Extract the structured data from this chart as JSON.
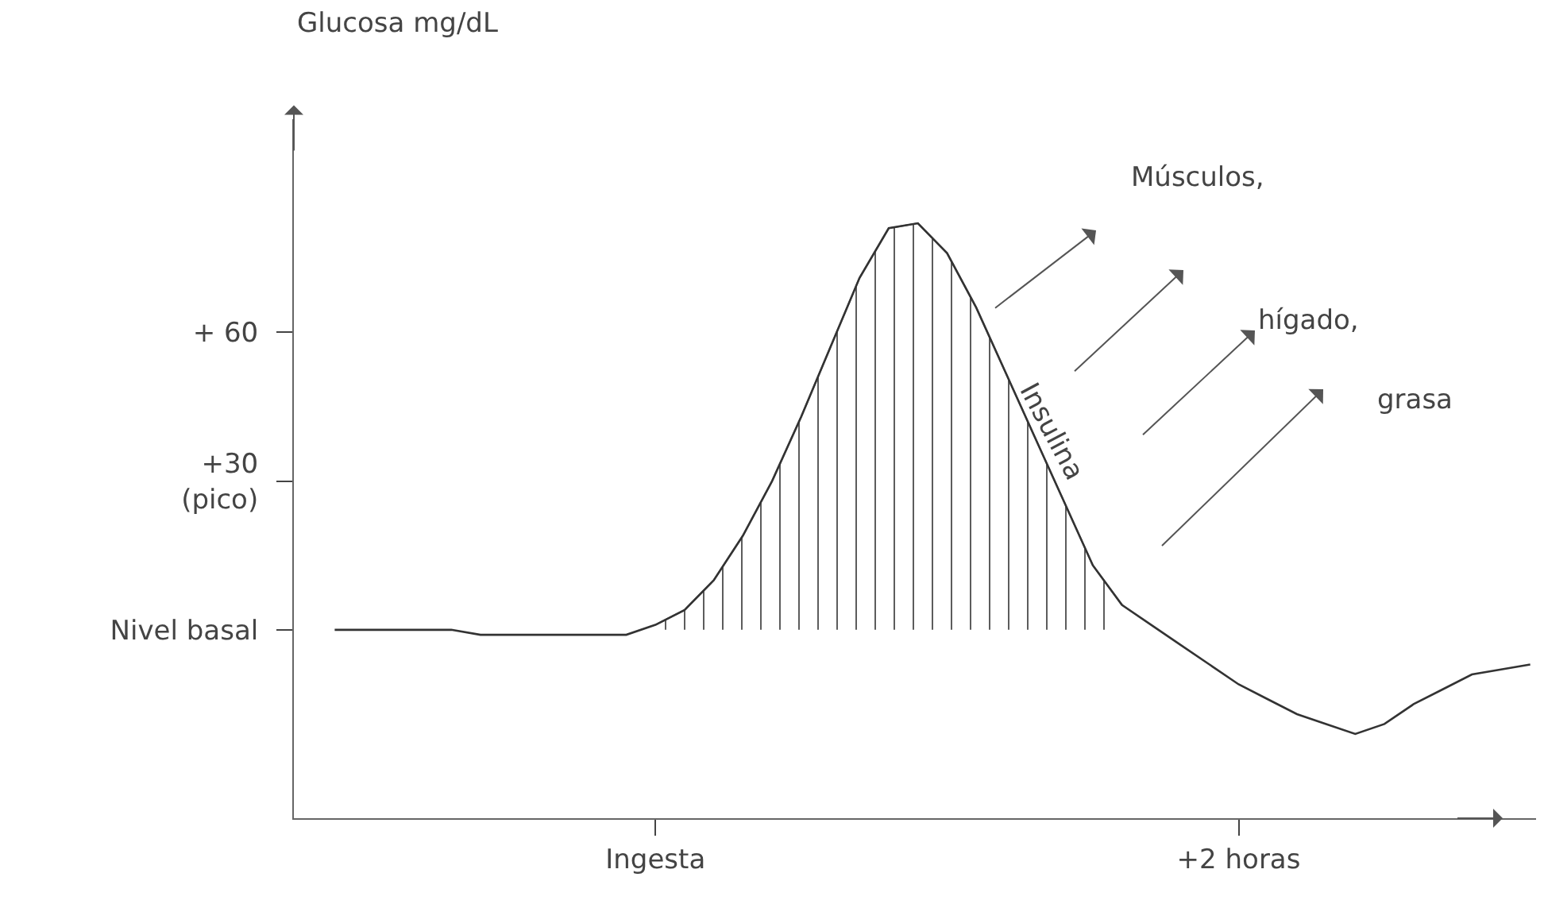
{
  "chart_data": {
    "type": "line",
    "ylabel": "Glucosa mg/dL",
    "categories": [
      null,
      null,
      null,
      null,
      null,
      null,
      null,
      null,
      null,
      null,
      null,
      "Ingesta",
      null,
      null,
      null,
      null,
      null,
      null,
      null,
      null,
      null,
      null,
      null,
      null,
      null,
      null,
      null,
      null,
      null,
      null,
      null,
      "+2 horas",
      null,
      null,
      null,
      null,
      null,
      null,
      null,
      null,
      null,
      null
    ],
    "ylim": [
      -38,
      103
    ],
    "yticks": [
      {
        "value": 0,
        "label": "Nivel basal"
      },
      {
        "value": 30,
        "label": "+30\n(pico)"
      },
      {
        "value": 60,
        "label": "+ 60"
      }
    ],
    "series": [
      {
        "color": "#333333",
        "values": [
          0,
          0,
          0,
          0,
          0,
          -1,
          -1,
          -1,
          -1,
          -1,
          -1,
          1,
          4,
          10,
          19,
          30,
          43,
          57,
          71,
          81,
          82,
          76,
          65,
          52,
          39,
          26,
          13,
          5,
          1,
          -3,
          -7,
          -11,
          -14,
          -17,
          -19,
          -21,
          -19,
          -15,
          -12,
          -9,
          -8,
          -7
        ]
      },
      {
        "type": "area",
        "color": "#555555",
        "values": [
          null,
          null,
          null,
          null,
          null,
          null,
          null,
          null,
          null,
          null,
          null,
          1,
          4,
          10,
          19,
          30,
          43,
          57,
          71,
          81,
          82,
          76,
          65,
          52,
          39,
          26,
          13,
          5,
          null,
          null,
          null,
          null,
          null,
          null,
          null,
          null,
          null,
          null,
          null,
          null,
          null,
          null
        ]
      }
    ],
    "annotations": [
      "Insulina",
      "Músculos,",
      "hígado,",
      "grasa"
    ],
    "grid": false,
    "legend": false
  }
}
